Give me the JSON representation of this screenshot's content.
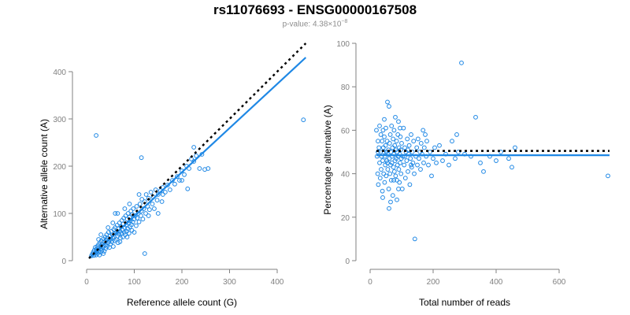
{
  "header": {
    "title": "rs11076693 - ENSG00000167508",
    "pvalue_prefix": "p-value: 4.38×10",
    "pvalue_exp": "−8"
  },
  "colors": {
    "points": "#1f88e5",
    "fit": "#1f88e5",
    "expected": "#000000",
    "axis": "#808080"
  },
  "chart_data": [
    {
      "type": "scatter",
      "title": "",
      "xlabel": "Reference allele count (G)",
      "ylabel": "Alternative allele count (A)",
      "xlim": [
        0,
        460
      ],
      "ylim": [
        0,
        430
      ],
      "xticks": [
        0,
        100,
        200,
        300,
        400
      ],
      "yticks": [
        0,
        100,
        200,
        300,
        400
      ],
      "fit_line": [
        [
          5,
          5
        ],
        [
          460,
          430
        ]
      ],
      "expected_line": [
        [
          5,
          5
        ],
        [
          460,
          460
        ]
      ],
      "points": [
        [
          10,
          10
        ],
        [
          12,
          14
        ],
        [
          14,
          18
        ],
        [
          15,
          11
        ],
        [
          16,
          22
        ],
        [
          18,
          16
        ],
        [
          18,
          28
        ],
        [
          20,
          12
        ],
        [
          20,
          24
        ],
        [
          21,
          19
        ],
        [
          22,
          30
        ],
        [
          23,
          15
        ],
        [
          24,
          26
        ],
        [
          25,
          34
        ],
        [
          26,
          20
        ],
        [
          27,
          12
        ],
        [
          28,
          38
        ],
        [
          29,
          25
        ],
        [
          30,
          30
        ],
        [
          30,
          18
        ],
        [
          31,
          42
        ],
        [
          32,
          22
        ],
        [
          33,
          35
        ],
        [
          34,
          28
        ],
        [
          35,
          46
        ],
        [
          36,
          32
        ],
        [
          37,
          20
        ],
        [
          38,
          40
        ],
        [
          39,
          50
        ],
        [
          40,
          34
        ],
        [
          40,
          26
        ],
        [
          41,
          44
        ],
        [
          42,
          55
        ],
        [
          43,
          30
        ],
        [
          44,
          48
        ],
        [
          45,
          38
        ],
        [
          46,
          60
        ],
        [
          47,
          42
        ],
        [
          48,
          28
        ],
        [
          49,
          52
        ],
        [
          50,
          45
        ],
        [
          50,
          35
        ],
        [
          52,
          62
        ],
        [
          53,
          40
        ],
        [
          54,
          55
        ],
        [
          55,
          48
        ],
        [
          56,
          30
        ],
        [
          57,
          66
        ],
        [
          58,
          50
        ],
        [
          59,
          42
        ],
        [
          60,
          70
        ],
        [
          60,
          58
        ],
        [
          62,
          45
        ],
        [
          63,
          60
        ],
        [
          64,
          75
        ],
        [
          65,
          52
        ],
        [
          66,
          38
        ],
        [
          67,
          68
        ],
        [
          68,
          56
        ],
        [
          69,
          80
        ],
        [
          70,
          62
        ],
        [
          71,
          48
        ],
        [
          72,
          72
        ],
        [
          73,
          58
        ],
        [
          74,
          85
        ],
        [
          75,
          65
        ],
        [
          76,
          50
        ],
        [
          77,
          78
        ],
        [
          78,
          90
        ],
        [
          79,
          60
        ],
        [
          80,
          70
        ],
        [
          81,
          55
        ],
        [
          82,
          95
        ],
        [
          83,
          75
        ],
        [
          84,
          62
        ],
        [
          85,
          88
        ],
        [
          86,
          68
        ],
        [
          87,
          100
        ],
        [
          88,
          80
        ],
        [
          89,
          58
        ],
        [
          90,
          92
        ],
        [
          91,
          72
        ],
        [
          92,
          84
        ],
        [
          93,
          105
        ],
        [
          94,
          76
        ],
        [
          95,
          64
        ],
        [
          96,
          98
        ],
        [
          97,
          82
        ],
        [
          98,
          110
        ],
        [
          100,
          88
        ],
        [
          102,
          95
        ],
        [
          104,
          74
        ],
        [
          105,
          115
        ],
        [
          106,
          90
        ],
        [
          108,
          100
        ],
        [
          110,
          82
        ],
        [
          112,
          120
        ],
        [
          114,
          95
        ],
        [
          115,
          105
        ],
        [
          116,
          130
        ],
        [
          118,
          88
        ],
        [
          120,
          110
        ],
        [
          122,
          125
        ],
        [
          124,
          100
        ],
        [
          125,
          140
        ],
        [
          128,
          115
        ],
        [
          130,
          132
        ],
        [
          132,
          108
        ],
        [
          135,
          145
        ],
        [
          138,
          120
        ],
        [
          140,
          135
        ],
        [
          142,
          110
        ],
        [
          145,
          150
        ],
        [
          148,
          128
        ],
        [
          150,
          140
        ],
        [
          155,
          148
        ],
        [
          158,
          125
        ],
        [
          160,
          155
        ],
        [
          165,
          145
        ],
        [
          170,
          160
        ],
        [
          175,
          150
        ],
        [
          180,
          170
        ],
        [
          185,
          162
        ],
        [
          190,
          178
        ],
        [
          195,
          170
        ],
        [
          200,
          190
        ],
        [
          205,
          182
        ],
        [
          210,
          200
        ],
        [
          215,
          195
        ],
        [
          220,
          215
        ],
        [
          225,
          210
        ],
        [
          20,
          265
        ],
        [
          115,
          218
        ],
        [
          122,
          15
        ],
        [
          212,
          152
        ],
        [
          237,
          195
        ],
        [
          242,
          225
        ],
        [
          248,
          193
        ],
        [
          255,
          195
        ],
        [
          455,
          298
        ],
        [
          60,
          100
        ],
        [
          70,
          40
        ],
        [
          80,
          110
        ],
        [
          45,
          70
        ],
        [
          30,
          55
        ],
        [
          100,
          60
        ],
        [
          55,
          80
        ],
        [
          90,
          120
        ],
        [
          25,
          45
        ],
        [
          35,
          15
        ],
        [
          65,
          100
        ],
        [
          85,
          50
        ],
        [
          150,
          100
        ],
        [
          130,
          95
        ],
        [
          110,
          140
        ],
        [
          160,
          140
        ],
        [
          200,
          170
        ],
        [
          225,
          240
        ],
        [
          230,
          222
        ]
      ]
    },
    {
      "type": "scatter",
      "title": "",
      "xlabel": "Total number of reads",
      "ylabel": "Percentage alternative (A)",
      "xlim": [
        0,
        760
      ],
      "ylim": [
        0,
        100
      ],
      "xticks": [
        0,
        200,
        400,
        600
      ],
      "yticks": [
        0,
        20,
        40,
        60,
        80,
        100
      ],
      "fit_line": [
        [
          20,
          48.5
        ],
        [
          760,
          48.5
        ]
      ],
      "expected_line": [
        [
          20,
          50.5
        ],
        [
          760,
          50.5
        ]
      ],
      "points": [
        [
          20,
          60
        ],
        [
          22,
          48
        ],
        [
          24,
          40
        ],
        [
          25,
          55
        ],
        [
          26,
          35
        ],
        [
          28,
          52
        ],
        [
          30,
          45
        ],
        [
          30,
          62
        ],
        [
          32,
          38
        ],
        [
          33,
          50
        ],
        [
          34,
          58
        ],
        [
          35,
          42
        ],
        [
          36,
          48
        ],
        [
          38,
          55
        ],
        [
          39,
          32
        ],
        [
          40,
          46
        ],
        [
          41,
          60
        ],
        [
          42,
          52
        ],
        [
          43,
          40
        ],
        [
          44,
          50
        ],
        [
          45,
          57
        ],
        [
          46,
          36
        ],
        [
          47,
          48
        ],
        [
          48,
          44
        ],
        [
          49,
          53
        ],
        [
          50,
          61
        ],
        [
          51,
          39
        ],
        [
          52,
          50
        ],
        [
          53,
          46
        ],
        [
          54,
          55
        ],
        [
          55,
          73
        ],
        [
          56,
          42
        ],
        [
          57,
          49
        ],
        [
          58,
          51
        ],
        [
          59,
          33
        ],
        [
          60,
          71
        ],
        [
          61,
          47
        ],
        [
          62,
          54
        ],
        [
          63,
          40
        ],
        [
          64,
          58
        ],
        [
          65,
          44
        ],
        [
          66,
          50
        ],
        [
          67,
          37
        ],
        [
          68,
          62
        ],
        [
          69,
          45
        ],
        [
          70,
          48
        ],
        [
          71,
          52
        ],
        [
          72,
          30
        ],
        [
          73,
          56
        ],
        [
          74,
          43
        ],
        [
          75,
          49
        ],
        [
          76,
          60
        ],
        [
          77,
          41
        ],
        [
          78,
          53
        ],
        [
          79,
          46
        ],
        [
          80,
          66
        ],
        [
          81,
          39
        ],
        [
          82,
          51
        ],
        [
          83,
          47
        ],
        [
          84,
          55
        ],
        [
          85,
          28
        ],
        [
          86,
          50
        ],
        [
          87,
          44
        ],
        [
          88,
          58
        ],
        [
          89,
          48
        ],
        [
          90,
          64
        ],
        [
          91,
          42
        ],
        [
          92,
          52
        ],
        [
          93,
          36
        ],
        [
          94,
          49
        ],
        [
          95,
          45
        ],
        [
          96,
          57
        ],
        [
          97,
          51
        ],
        [
          98,
          40
        ],
        [
          99,
          47
        ],
        [
          100,
          54
        ],
        [
          102,
          33
        ],
        [
          104,
          48
        ],
        [
          106,
          61
        ],
        [
          108,
          44
        ],
        [
          110,
          52
        ],
        [
          112,
          38
        ],
        [
          114,
          50
        ],
        [
          116,
          46
        ],
        [
          118,
          56
        ],
        [
          120,
          41
        ],
        [
          122,
          49
        ],
        [
          124,
          53
        ],
        [
          126,
          35
        ],
        [
          128,
          47
        ],
        [
          130,
          58
        ],
        [
          132,
          43
        ],
        [
          134,
          50
        ],
        [
          136,
          45
        ],
        [
          138,
          55
        ],
        [
          140,
          40
        ],
        [
          142,
          10
        ],
        [
          145,
          48
        ],
        [
          148,
          52
        ],
        [
          150,
          44
        ],
        [
          152,
          56
        ],
        [
          155,
          47
        ],
        [
          158,
          50
        ],
        [
          160,
          42
        ],
        [
          162,
          54
        ],
        [
          165,
          49
        ],
        [
          168,
          60
        ],
        [
          170,
          45
        ],
        [
          172,
          52
        ],
        [
          175,
          58
        ],
        [
          178,
          48
        ],
        [
          180,
          55
        ],
        [
          185,
          44
        ],
        [
          190,
          50
        ],
        [
          195,
          39
        ],
        [
          200,
          47
        ],
        [
          205,
          52
        ],
        [
          210,
          45
        ],
        [
          220,
          53
        ],
        [
          230,
          46
        ],
        [
          240,
          49
        ],
        [
          250,
          44
        ],
        [
          260,
          55
        ],
        [
          270,
          47
        ],
        [
          275,
          58
        ],
        [
          280,
          50
        ],
        [
          290,
          91
        ],
        [
          300,
          49
        ],
        [
          320,
          48
        ],
        [
          335,
          66
        ],
        [
          350,
          45
        ],
        [
          360,
          41
        ],
        [
          380,
          48
        ],
        [
          400,
          46
        ],
        [
          415,
          50
        ],
        [
          440,
          47
        ],
        [
          450,
          43
        ],
        [
          460,
          52
        ],
        [
          755,
          39
        ],
        [
          25,
          50
        ],
        [
          45,
          65
        ],
        [
          65,
          27
        ],
        [
          85,
          37
        ],
        [
          95,
          61
        ],
        [
          110,
          48
        ],
        [
          120,
          51
        ],
        [
          130,
          44
        ],
        [
          60,
          24
        ],
        [
          75,
          37
        ],
        [
          90,
          33
        ],
        [
          55,
          45
        ],
        [
          40,
          29
        ]
      ]
    }
  ]
}
